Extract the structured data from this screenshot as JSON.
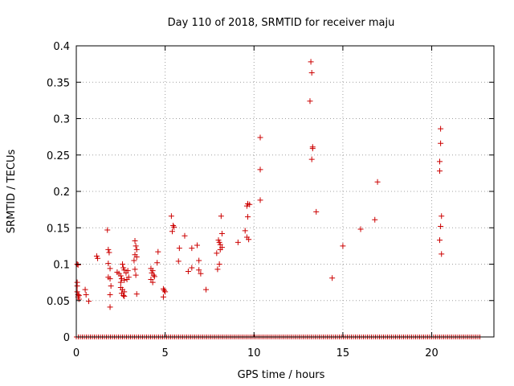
{
  "chart_data": {
    "type": "scatter",
    "title": "Day 110 of 2018, SRMTID for receiver maju",
    "xlabel": "GPS time / hours",
    "ylabel": "SRMTID / TECUs",
    "xlim": [
      0,
      23.5
    ],
    "ylim": [
      0,
      0.4
    ],
    "xticks": [
      0,
      5,
      10,
      15,
      20
    ],
    "yticks": [
      0,
      0.05,
      0.1,
      0.15,
      0.2,
      0.25,
      0.3,
      0.35,
      0.4
    ],
    "xtick_labels": [
      "0",
      "5",
      "10",
      "15",
      "20"
    ],
    "ytick_labels": [
      "0",
      "0.05",
      "0.1",
      "0.15",
      "0.2",
      "0.25",
      "0.3",
      "0.35",
      "0.4"
    ],
    "grid": true,
    "marker": "+",
    "color": "#cc0000",
    "zero_baseline_range": [
      0,
      22.8
    ],
    "points": [
      [
        0.05,
        0.1
      ],
      [
        0.1,
        0.099
      ],
      [
        0.05,
        0.075
      ],
      [
        0.05,
        0.07
      ],
      [
        0.05,
        0.062
      ],
      [
        0.1,
        0.058
      ],
      [
        0.1,
        0.055
      ],
      [
        0.15,
        0.057
      ],
      [
        0.15,
        0.052
      ],
      [
        0.5,
        0.065
      ],
      [
        0.55,
        0.058
      ],
      [
        0.7,
        0.049
      ],
      [
        1.15,
        0.111
      ],
      [
        1.2,
        0.108
      ],
      [
        1.75,
        0.147
      ],
      [
        1.8,
        0.12
      ],
      [
        1.85,
        0.116
      ],
      [
        1.8,
        0.101
      ],
      [
        1.9,
        0.094
      ],
      [
        1.8,
        0.082
      ],
      [
        1.9,
        0.08
      ],
      [
        1.95,
        0.07
      ],
      [
        1.9,
        0.058
      ],
      [
        1.9,
        0.041
      ],
      [
        2.3,
        0.089
      ],
      [
        2.4,
        0.087
      ],
      [
        2.5,
        0.084
      ],
      [
        2.6,
        0.1
      ],
      [
        2.65,
        0.095
      ],
      [
        2.7,
        0.092
      ],
      [
        2.55,
        0.08
      ],
      [
        2.7,
        0.078
      ],
      [
        2.5,
        0.075
      ],
      [
        2.5,
        0.068
      ],
      [
        2.6,
        0.065
      ],
      [
        2.7,
        0.062
      ],
      [
        2.55,
        0.06
      ],
      [
        2.65,
        0.057
      ],
      [
        2.7,
        0.056
      ],
      [
        2.8,
        0.088
      ],
      [
        2.9,
        0.091
      ],
      [
        2.95,
        0.082
      ],
      [
        2.85,
        0.079
      ],
      [
        3.3,
        0.132
      ],
      [
        3.35,
        0.125
      ],
      [
        3.4,
        0.12
      ],
      [
        3.3,
        0.113
      ],
      [
        3.4,
        0.11
      ],
      [
        3.25,
        0.105
      ],
      [
        3.3,
        0.093
      ],
      [
        3.35,
        0.085
      ],
      [
        3.4,
        0.059
      ],
      [
        4.2,
        0.094
      ],
      [
        4.3,
        0.091
      ],
      [
        4.25,
        0.088
      ],
      [
        4.35,
        0.085
      ],
      [
        4.4,
        0.083
      ],
      [
        4.2,
        0.079
      ],
      [
        4.3,
        0.075
      ],
      [
        4.6,
        0.117
      ],
      [
        4.55,
        0.102
      ],
      [
        4.9,
        0.066
      ],
      [
        4.95,
        0.064
      ],
      [
        5.0,
        0.062
      ],
      [
        4.9,
        0.055
      ],
      [
        5.35,
        0.166
      ],
      [
        5.45,
        0.153
      ],
      [
        5.5,
        0.151
      ],
      [
        5.4,
        0.145
      ],
      [
        5.8,
        0.122
      ],
      [
        5.75,
        0.104
      ],
      [
        6.1,
        0.139
      ],
      [
        6.3,
        0.09
      ],
      [
        6.5,
        0.095
      ],
      [
        6.5,
        0.122
      ],
      [
        6.8,
        0.126
      ],
      [
        6.9,
        0.105
      ],
      [
        6.9,
        0.092
      ],
      [
        7.0,
        0.087
      ],
      [
        7.3,
        0.065
      ],
      [
        7.9,
        0.115
      ],
      [
        8.0,
        0.133
      ],
      [
        8.05,
        0.13
      ],
      [
        8.1,
        0.127
      ],
      [
        8.2,
        0.142
      ],
      [
        8.15,
        0.166
      ],
      [
        8.1,
        0.12
      ],
      [
        8.2,
        0.123
      ],
      [
        8.05,
        0.1
      ],
      [
        7.95,
        0.093
      ],
      [
        9.1,
        0.13
      ],
      [
        9.5,
        0.146
      ],
      [
        9.6,
        0.137
      ],
      [
        9.7,
        0.134
      ],
      [
        9.65,
        0.165
      ],
      [
        9.6,
        0.18
      ],
      [
        9.65,
        0.183
      ],
      [
        9.75,
        0.182
      ],
      [
        10.35,
        0.274
      ],
      [
        10.35,
        0.23
      ],
      [
        10.35,
        0.188
      ],
      [
        13.2,
        0.378
      ],
      [
        13.25,
        0.363
      ],
      [
        13.15,
        0.324
      ],
      [
        13.3,
        0.261
      ],
      [
        13.3,
        0.259
      ],
      [
        13.25,
        0.244
      ],
      [
        13.5,
        0.172
      ],
      [
        14.4,
        0.081
      ],
      [
        15.0,
        0.125
      ],
      [
        16.0,
        0.148
      ],
      [
        16.8,
        0.161
      ],
      [
        16.95,
        0.213
      ],
      [
        20.5,
        0.286
      ],
      [
        20.5,
        0.266
      ],
      [
        20.45,
        0.241
      ],
      [
        20.45,
        0.228
      ],
      [
        20.55,
        0.166
      ],
      [
        20.5,
        0.152
      ],
      [
        20.45,
        0.133
      ],
      [
        20.55,
        0.114
      ]
    ]
  }
}
